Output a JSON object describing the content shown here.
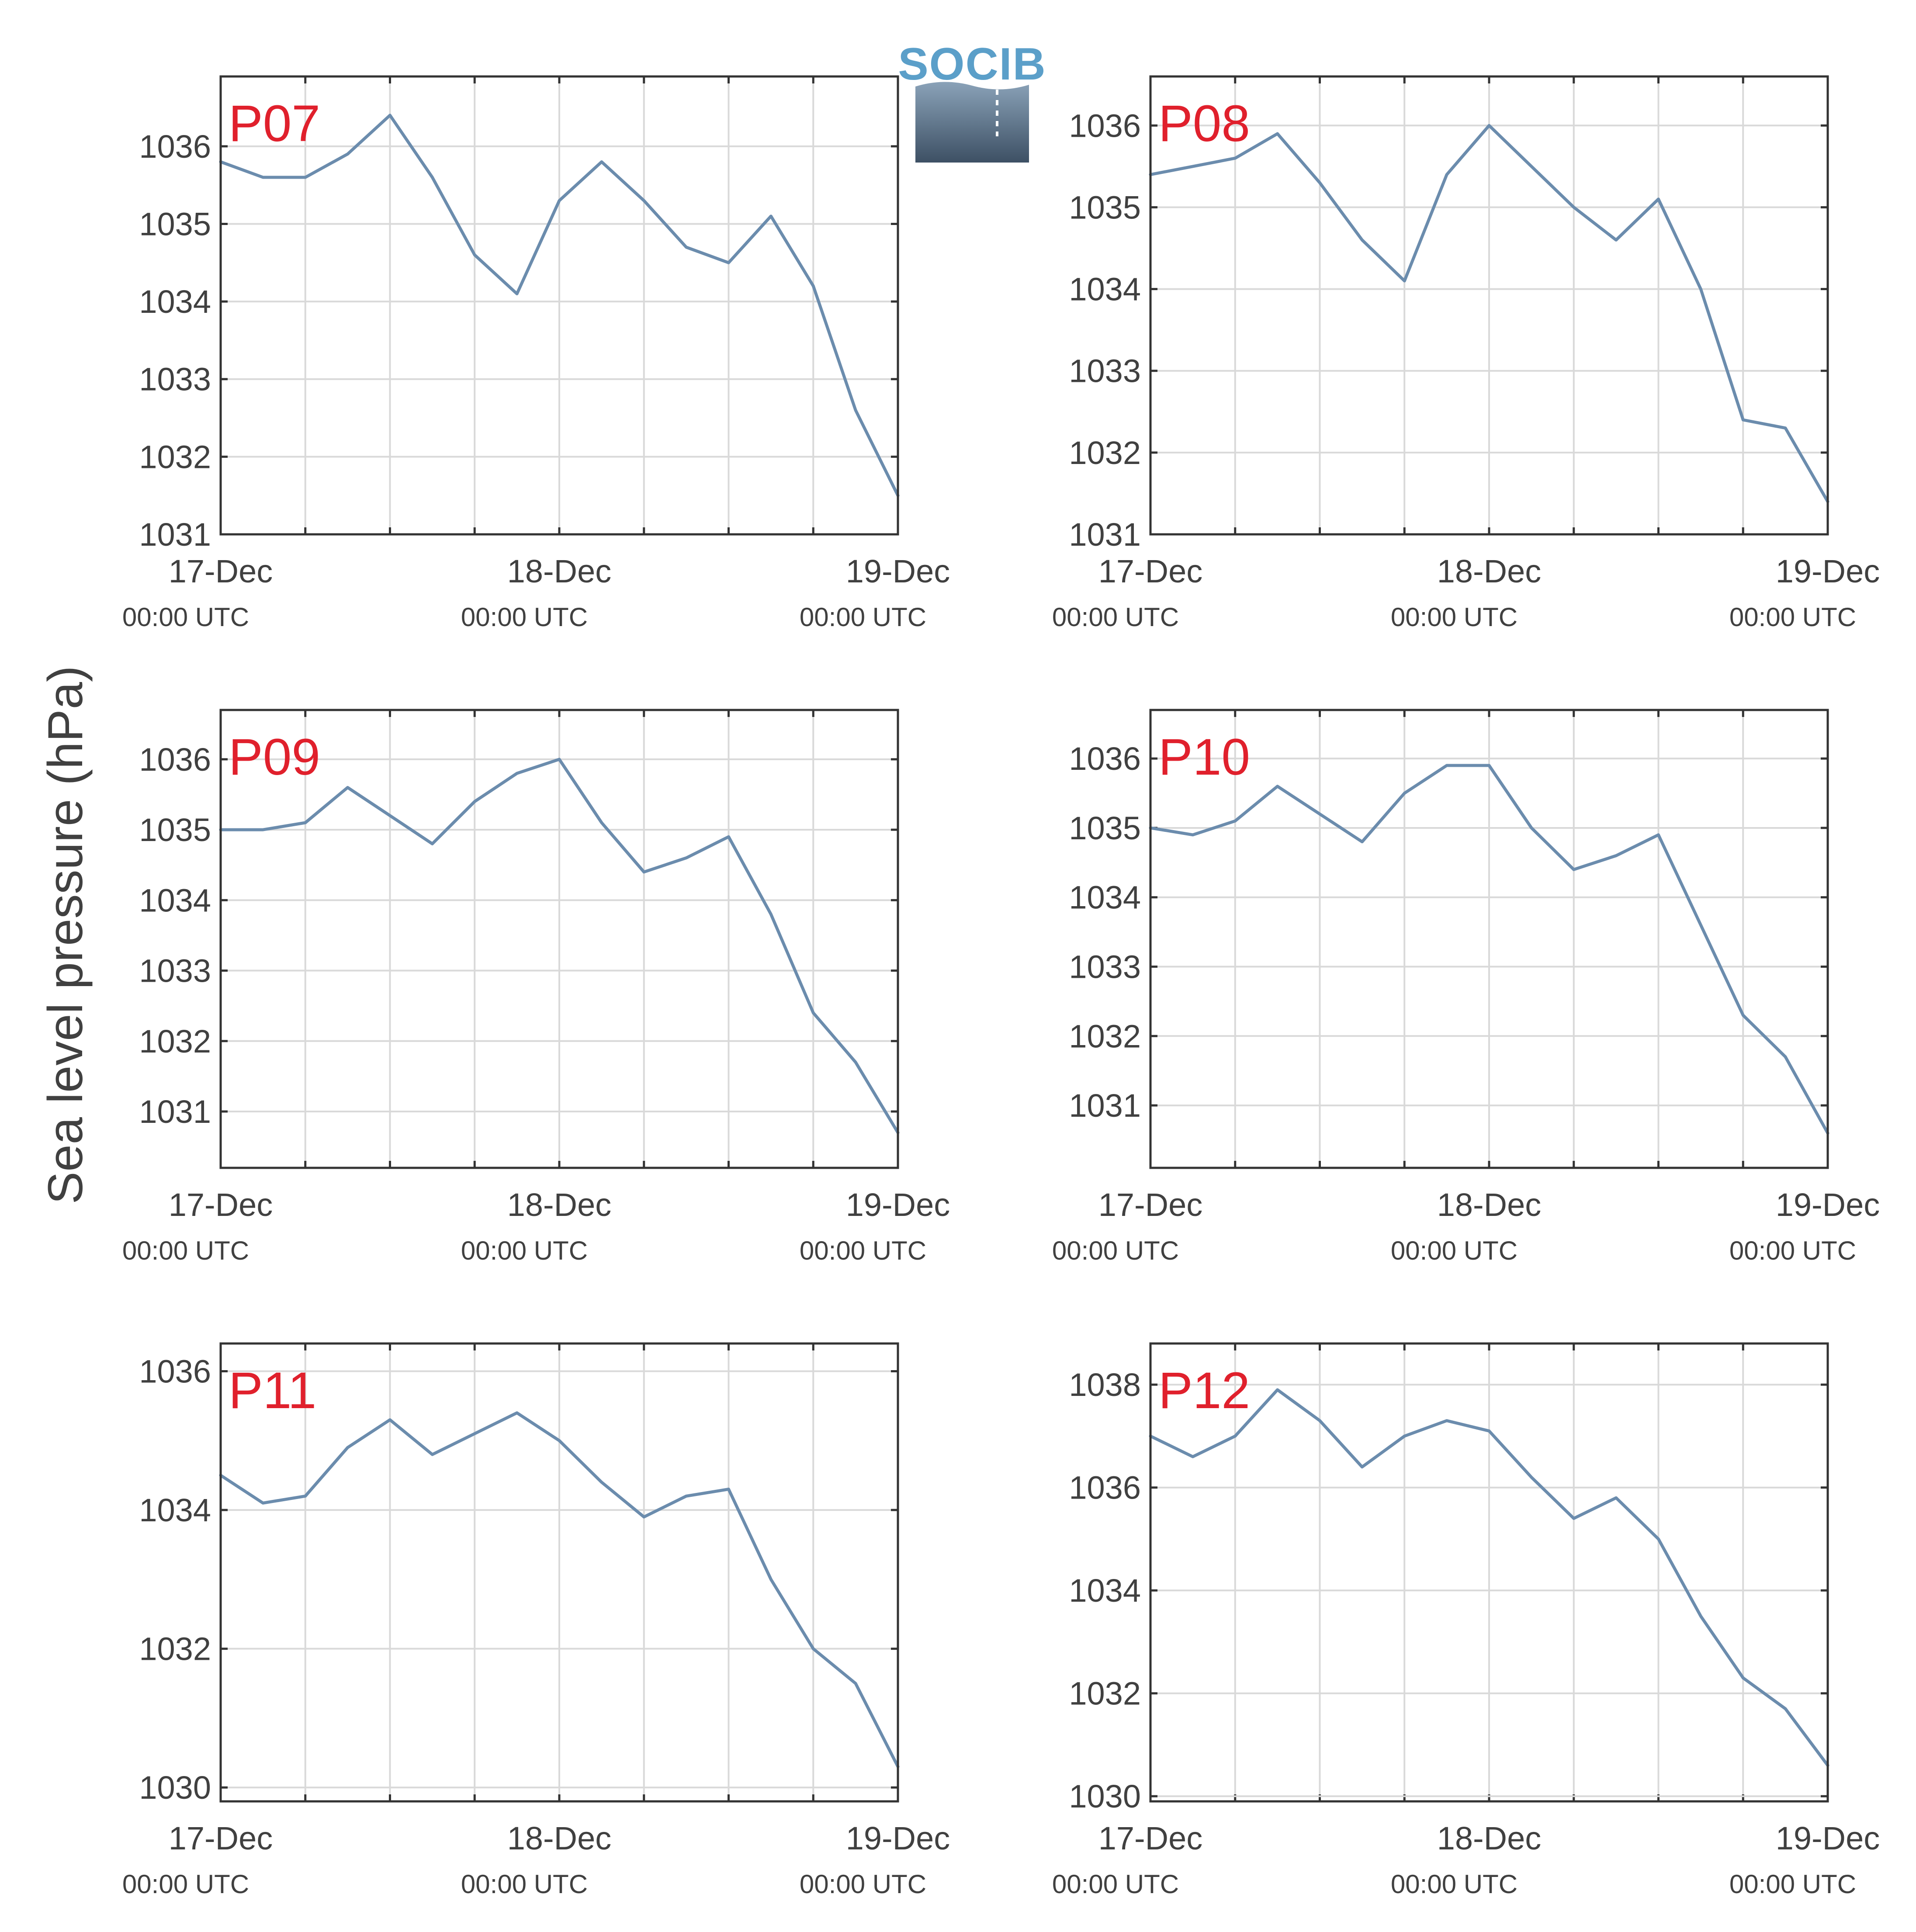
{
  "ylabel": "Sea level pressure (hPa)",
  "logo": {
    "text": "SOCIB",
    "colors": {
      "text": "#5b9fc9",
      "top": "#8aa2b8",
      "bottom": "#3d5064"
    }
  },
  "colors": {
    "line": "#6b8cad",
    "panel_label": "#e0202c",
    "grid": "#d9d9d9",
    "axis": "#333333"
  },
  "x_ticks": [
    {
      "date": "17-Dec",
      "time": "00:00 UTC"
    },
    {
      "date": "18-Dec",
      "time": "00:00 UTC"
    },
    {
      "date": "19-Dec",
      "time": "00:00 UTC"
    }
  ],
  "chart_data": [
    {
      "type": "line",
      "label": "P07",
      "grid": true,
      "xlim": [
        "17-Dec 00:00",
        "19-Dec 00:00"
      ],
      "ylim": [
        1031,
        1036.9
      ],
      "yticks": [
        1031,
        1032,
        1033,
        1034,
        1035,
        1036
      ],
      "x": [
        "17-Dec 00:00",
        "17-Dec 03:00",
        "17-Dec 06:00",
        "17-Dec 09:00",
        "17-Dec 12:00",
        "17-Dec 15:00",
        "17-Dec 18:00",
        "17-Dec 21:00",
        "18-Dec 00:00",
        "18-Dec 03:00",
        "18-Dec 06:00",
        "18-Dec 09:00",
        "18-Dec 12:00",
        "18-Dec 15:00",
        "18-Dec 18:00",
        "18-Dec 21:00",
        "19-Dec 00:00"
      ],
      "y": [
        1035.8,
        1035.6,
        1035.6,
        1035.9,
        1036.4,
        1035.6,
        1034.6,
        1034.1,
        1035.3,
        1035.8,
        1035.3,
        1034.7,
        1034.5,
        1035.1,
        1034.2,
        1032.6,
        1031.5
      ]
    },
    {
      "type": "line",
      "label": "P08",
      "grid": true,
      "xlim": [
        "17-Dec 00:00",
        "19-Dec 00:00"
      ],
      "ylim": [
        1031,
        1036.6
      ],
      "yticks": [
        1031,
        1032,
        1033,
        1034,
        1035,
        1036
      ],
      "x": [
        "17-Dec 00:00",
        "17-Dec 03:00",
        "17-Dec 06:00",
        "17-Dec 09:00",
        "17-Dec 12:00",
        "17-Dec 15:00",
        "17-Dec 18:00",
        "17-Dec 21:00",
        "18-Dec 00:00",
        "18-Dec 03:00",
        "18-Dec 06:00",
        "18-Dec 09:00",
        "18-Dec 12:00",
        "18-Dec 15:00",
        "18-Dec 18:00",
        "18-Dec 21:00",
        "19-Dec 00:00"
      ],
      "y": [
        1035.4,
        1035.5,
        1035.6,
        1035.9,
        1035.3,
        1034.6,
        1034.1,
        1035.4,
        1036.0,
        1035.5,
        1035.0,
        1034.6,
        1035.1,
        1034.0,
        1032.4,
        1032.3,
        1031.4
      ]
    },
    {
      "type": "line",
      "label": "P09",
      "grid": true,
      "xlim": [
        "17-Dec 00:00",
        "19-Dec 00:00"
      ],
      "ylim": [
        1030.2,
        1036.7
      ],
      "yticks": [
        1031,
        1032,
        1033,
        1034,
        1035,
        1036
      ],
      "x": [
        "17-Dec 00:00",
        "17-Dec 03:00",
        "17-Dec 06:00",
        "17-Dec 09:00",
        "17-Dec 12:00",
        "17-Dec 15:00",
        "17-Dec 18:00",
        "17-Dec 21:00",
        "18-Dec 00:00",
        "18-Dec 03:00",
        "18-Dec 06:00",
        "18-Dec 09:00",
        "18-Dec 12:00",
        "18-Dec 15:00",
        "18-Dec 18:00",
        "18-Dec 21:00",
        "19-Dec 00:00"
      ],
      "y": [
        1035.0,
        1035.0,
        1035.1,
        1035.6,
        1035.2,
        1034.8,
        1035.4,
        1035.8,
        1036.0,
        1035.1,
        1034.4,
        1034.6,
        1034.9,
        1033.8,
        1032.4,
        1031.7,
        1030.7
      ]
    },
    {
      "type": "line",
      "label": "P10",
      "grid": true,
      "xlim": [
        "17-Dec 00:00",
        "19-Dec 00:00"
      ],
      "ylim": [
        1030.1,
        1036.7
      ],
      "yticks": [
        1031,
        1032,
        1033,
        1034,
        1035,
        1036
      ],
      "x": [
        "17-Dec 00:00",
        "17-Dec 03:00",
        "17-Dec 06:00",
        "17-Dec 09:00",
        "17-Dec 12:00",
        "17-Dec 15:00",
        "17-Dec 18:00",
        "17-Dec 21:00",
        "18-Dec 00:00",
        "18-Dec 03:00",
        "18-Dec 06:00",
        "18-Dec 09:00",
        "18-Dec 12:00",
        "18-Dec 15:00",
        "18-Dec 18:00",
        "18-Dec 21:00",
        "19-Dec 00:00"
      ],
      "y": [
        1035.0,
        1034.9,
        1035.1,
        1035.6,
        1035.2,
        1034.8,
        1035.5,
        1035.9,
        1035.9,
        1035.0,
        1034.4,
        1034.6,
        1034.9,
        1033.6,
        1032.3,
        1031.7,
        1030.6
      ]
    },
    {
      "type": "line",
      "label": "P11",
      "grid": true,
      "xlim": [
        "17-Dec 00:00",
        "19-Dec 00:00"
      ],
      "ylim": [
        1029.8,
        1036.4
      ],
      "yticks": [
        1030,
        1032,
        1034,
        1036
      ],
      "x": [
        "17-Dec 00:00",
        "17-Dec 03:00",
        "17-Dec 06:00",
        "17-Dec 09:00",
        "17-Dec 12:00",
        "17-Dec 15:00",
        "17-Dec 18:00",
        "17-Dec 21:00",
        "18-Dec 00:00",
        "18-Dec 03:00",
        "18-Dec 06:00",
        "18-Dec 09:00",
        "18-Dec 12:00",
        "18-Dec 15:00",
        "18-Dec 18:00",
        "18-Dec 21:00",
        "19-Dec 00:00"
      ],
      "y": [
        1034.5,
        1034.1,
        1034.2,
        1034.9,
        1035.3,
        1034.8,
        1035.1,
        1035.4,
        1035.0,
        1034.4,
        1033.9,
        1034.2,
        1034.3,
        1033.0,
        1032.0,
        1031.5,
        1030.3
      ]
    },
    {
      "type": "line",
      "label": "P12",
      "grid": true,
      "xlim": [
        "17-Dec 00:00",
        "19-Dec 00:00"
      ],
      "ylim": [
        1029.9,
        1038.8
      ],
      "yticks": [
        1030,
        1032,
        1034,
        1036,
        1038
      ],
      "x": [
        "17-Dec 00:00",
        "17-Dec 03:00",
        "17-Dec 06:00",
        "17-Dec 09:00",
        "17-Dec 12:00",
        "17-Dec 15:00",
        "17-Dec 18:00",
        "17-Dec 21:00",
        "18-Dec 00:00",
        "18-Dec 03:00",
        "18-Dec 06:00",
        "18-Dec 09:00",
        "18-Dec 12:00",
        "18-Dec 15:00",
        "18-Dec 18:00",
        "18-Dec 21:00",
        "19-Dec 00:00"
      ],
      "y": [
        1037.0,
        1036.6,
        1037.0,
        1037.9,
        1037.3,
        1036.4,
        1037.0,
        1037.3,
        1037.1,
        1036.2,
        1035.4,
        1035.8,
        1035.0,
        1033.5,
        1032.3,
        1031.7,
        1030.6
      ]
    }
  ]
}
